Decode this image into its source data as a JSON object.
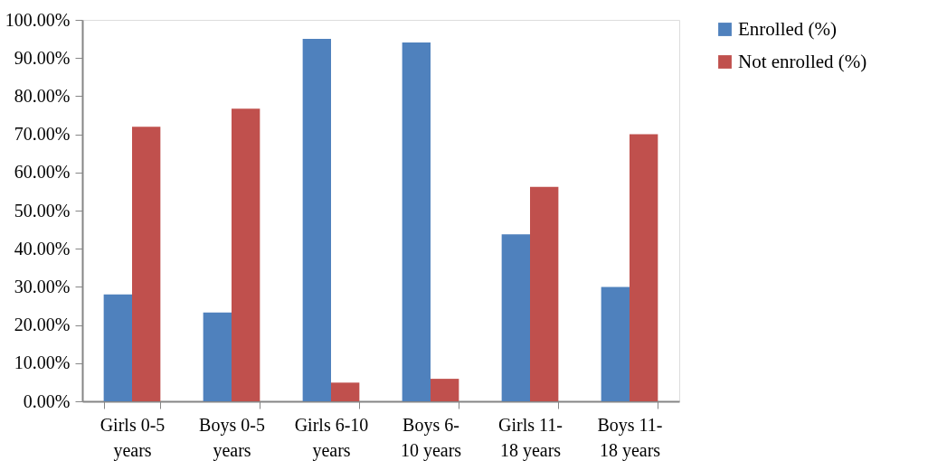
{
  "chart_data": {
    "type": "bar",
    "categories": [
      "Girls 0-5 years",
      "Boys 0-5 years",
      "Girls 6-10 years",
      "Boys 6-10 years",
      "Girls 11-18 years",
      "Boys 11-18 years"
    ],
    "series": [
      {
        "name": "Enrolled (%)",
        "color": "#4f81bd",
        "values": [
          28.0,
          23.3,
          95.0,
          94.1,
          43.8,
          30.0
        ]
      },
      {
        "name": "Not enrolled (%)",
        "color": "#c0504d",
        "values": [
          72.0,
          76.7,
          4.9,
          5.9,
          56.2,
          70.0
        ]
      }
    ],
    "ylim": [
      0,
      100
    ],
    "yticks": [
      {
        "value": 0,
        "label": "0.00%"
      },
      {
        "value": 10,
        "label": "10.00%"
      },
      {
        "value": 20,
        "label": "20.00%"
      },
      {
        "value": 30,
        "label": "30.00%"
      },
      {
        "value": 40,
        "label": "40.00%"
      },
      {
        "value": 50,
        "label": "50.00%"
      },
      {
        "value": 60,
        "label": "60.00%"
      },
      {
        "value": 70,
        "label": "70.00%"
      },
      {
        "value": 80,
        "label": "80.00%"
      },
      {
        "value": 90,
        "label": "90.00%"
      },
      {
        "value": 100,
        "label": "100.00%"
      }
    ],
    "legend": "right",
    "grid": false
  }
}
